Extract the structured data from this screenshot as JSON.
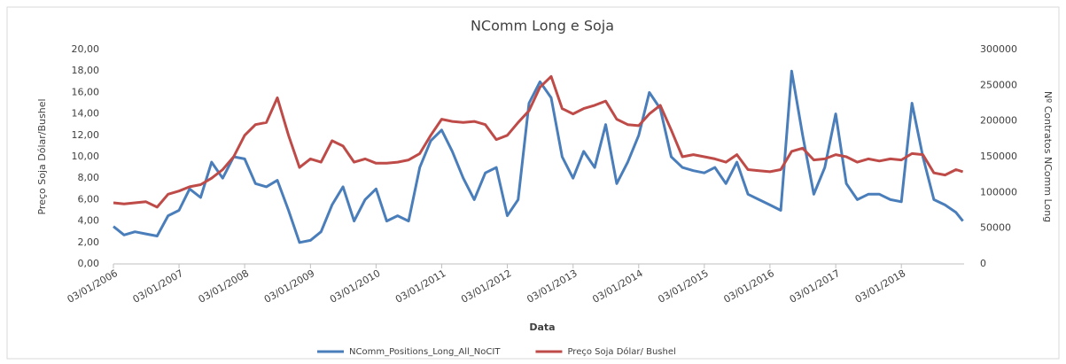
{
  "chart_data": {
    "type": "line",
    "title": "NComm Long e Soja",
    "x_label": "Data",
    "y_label": "Preço Soja Dólar/Bushel",
    "y2_label": "Nº Contratos NComm Long",
    "grid": false,
    "legend": "bottom",
    "xlim": [
      "2006-01-03",
      "2018-12-18"
    ],
    "xticks": [
      {
        "value": "2006-01-03",
        "label": "03/01/2006"
      },
      {
        "value": "2007-01-03",
        "label": "03/01/2007"
      },
      {
        "value": "2008-01-03",
        "label": "03/01/2008"
      },
      {
        "value": "2009-01-03",
        "label": "03/01/2009"
      },
      {
        "value": "2010-01-03",
        "label": "03/01/2010"
      },
      {
        "value": "2011-01-03",
        "label": "03/01/2011"
      },
      {
        "value": "2012-01-03",
        "label": "03/01/2012"
      },
      {
        "value": "2013-01-03",
        "label": "03/01/2013"
      },
      {
        "value": "2014-01-03",
        "label": "03/01/2014"
      },
      {
        "value": "2015-01-03",
        "label": "03/01/2015"
      },
      {
        "value": "2016-01-03",
        "label": "03/01/2016"
      },
      {
        "value": "2017-01-03",
        "label": "03/01/2017"
      },
      {
        "value": "2018-01-03",
        "label": "03/01/2018"
      }
    ],
    "ylim": [
      0,
      20
    ],
    "yticks": [
      {
        "value": 0,
        "label": "0,00"
      },
      {
        "value": 2,
        "label": "2,00"
      },
      {
        "value": 4,
        "label": "4,00"
      },
      {
        "value": 6,
        "label": "6,00"
      },
      {
        "value": 8,
        "label": "8,00"
      },
      {
        "value": 10,
        "label": "10,00"
      },
      {
        "value": 12,
        "label": "12,00"
      },
      {
        "value": 14,
        "label": "14,00"
      },
      {
        "value": 16,
        "label": "16,00"
      },
      {
        "value": 18,
        "label": "18,00"
      },
      {
        "value": 20,
        "label": "20,00"
      }
    ],
    "y2lim": [
      0,
      300000
    ],
    "y2ticks": [
      0,
      50000,
      100000,
      150000,
      200000,
      250000,
      300000
    ],
    "x": [
      "2006-01-03",
      "2006-03-03",
      "2006-05-03",
      "2006-07-03",
      "2006-09-03",
      "2006-11-03",
      "2007-01-03",
      "2007-03-03",
      "2007-05-03",
      "2007-07-03",
      "2007-09-03",
      "2007-11-03",
      "2008-01-03",
      "2008-03-03",
      "2008-05-03",
      "2008-07-03",
      "2008-09-03",
      "2008-11-03",
      "2009-01-03",
      "2009-03-03",
      "2009-05-03",
      "2009-07-03",
      "2009-09-03",
      "2009-11-03",
      "2010-01-03",
      "2010-03-03",
      "2010-05-03",
      "2010-07-03",
      "2010-09-03",
      "2010-11-03",
      "2011-01-03",
      "2011-03-03",
      "2011-05-03",
      "2011-07-03",
      "2011-09-03",
      "2011-11-03",
      "2012-01-03",
      "2012-03-03",
      "2012-05-03",
      "2012-07-03",
      "2012-09-03",
      "2012-11-03",
      "2013-01-03",
      "2013-03-03",
      "2013-05-03",
      "2013-07-03",
      "2013-09-03",
      "2013-11-03",
      "2014-01-03",
      "2014-03-03",
      "2014-05-03",
      "2014-07-03",
      "2014-09-03",
      "2014-11-03",
      "2015-01-03",
      "2015-03-03",
      "2015-05-03",
      "2015-07-03",
      "2015-09-03",
      "2015-11-03",
      "2016-01-03",
      "2016-03-03",
      "2016-05-03",
      "2016-07-03",
      "2016-09-03",
      "2016-11-03",
      "2017-01-03",
      "2017-03-03",
      "2017-05-03",
      "2017-07-03",
      "2017-09-03",
      "2017-11-03",
      "2018-01-03",
      "2018-03-03",
      "2018-05-03",
      "2018-07-03",
      "2018-09-03",
      "2018-11-03",
      "2018-12-11"
    ],
    "series": [
      {
        "name": "NComm_Positions_Long_All_NoCIT",
        "color": "#4a7ebb",
        "axis": "y2",
        "values": [
          52500,
          40500,
          45000,
          42000,
          39000,
          67500,
          75000,
          105000,
          93000,
          142500,
          120000,
          150000,
          147000,
          112500,
          108000,
          117000,
          75000,
          30000,
          33000,
          45000,
          82500,
          108000,
          60000,
          90000,
          105000,
          60000,
          67500,
          60000,
          135000,
          172500,
          187500,
          157500,
          120000,
          90000,
          127500,
          135000,
          67500,
          90000,
          225000,
          255000,
          232500,
          150000,
          120000,
          157500,
          135000,
          195000,
          112500,
          142500,
          180000,
          240000,
          217500,
          150000,
          135000,
          130500,
          127500,
          135000,
          112500,
          142500,
          97500,
          90000,
          82500,
          75000,
          270000,
          180000,
          97500,
          135000,
          210000,
          112500,
          90000,
          97500,
          97500,
          90000,
          87000,
          225000,
          150000,
          90000,
          82500,
          72000,
          60000
        ]
      },
      {
        "name": "Preço Soja Dólar/ Bushel",
        "color": "#be4b48",
        "values": [
          5.7,
          5.6,
          5.7,
          5.8,
          5.3,
          6.5,
          6.8,
          7.2,
          7.4,
          8.0,
          8.8,
          10.0,
          12.0,
          13.0,
          13.2,
          15.5,
          12.0,
          9.0,
          9.8,
          9.5,
          11.5,
          11.0,
          9.5,
          9.8,
          9.4,
          9.4,
          9.5,
          9.7,
          10.3,
          12.0,
          13.5,
          13.3,
          13.2,
          13.3,
          13.0,
          11.6,
          12.0,
          13.2,
          14.3,
          16.5,
          17.5,
          14.5,
          14.0,
          14.5,
          14.8,
          15.2,
          13.5,
          13.0,
          12.9,
          14.0,
          14.8,
          12.5,
          10.0,
          10.2,
          10.0,
          9.8,
          9.5,
          10.2,
          8.8,
          8.7,
          8.6,
          8.8,
          10.5,
          10.8,
          9.7,
          9.8,
          10.2,
          10.0,
          9.5,
          9.8,
          9.6,
          9.8,
          9.7,
          10.3,
          10.2,
          8.5,
          8.3,
          8.8,
          8.6
        ]
      }
    ]
  }
}
